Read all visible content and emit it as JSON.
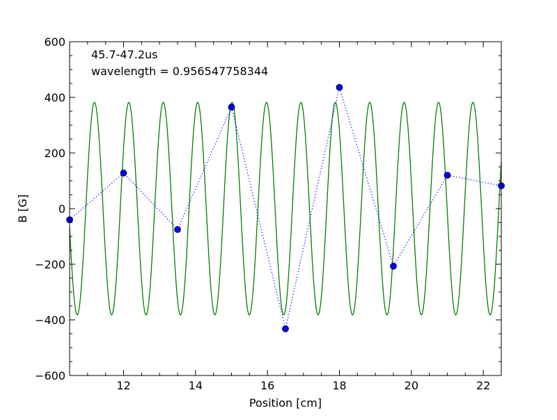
{
  "chart_data": {
    "type": "line",
    "title": "",
    "xlabel": "Position [cm]",
    "ylabel": "B [G]",
    "xlim": [
      10.5,
      22.5
    ],
    "ylim": [
      -600,
      600
    ],
    "xticks": [
      12,
      14,
      16,
      18,
      20,
      22
    ],
    "yticks": [
      -600,
      -400,
      -200,
      0,
      200,
      400,
      600
    ],
    "xtick_labels": [
      "12",
      "14",
      "16",
      "18",
      "20",
      "22"
    ],
    "ytick_labels": [
      "−600",
      "−400",
      "−200",
      "0",
      "200",
      "400",
      "600"
    ],
    "annotations": [
      "45.7-47.2us",
      "wavelength = 0.956547758344"
    ],
    "grid": false,
    "series": [
      {
        "kind": "measured",
        "style": "dotted-with-markers",
        "color": "#0000ff",
        "x": [
          10.5,
          12.0,
          13.5,
          15.0,
          16.5,
          18.0,
          19.5,
          21.0,
          22.5
        ],
        "y": [
          -40,
          128,
          -75,
          365,
          -432,
          436,
          -207,
          120,
          82
        ]
      },
      {
        "kind": "fit",
        "style": "solid",
        "color": "#008000",
        "amplitude": 382,
        "wavelength": 0.956547758344,
        "crest_x": 11.19,
        "x_range": [
          10.5,
          22.5
        ]
      }
    ]
  }
}
